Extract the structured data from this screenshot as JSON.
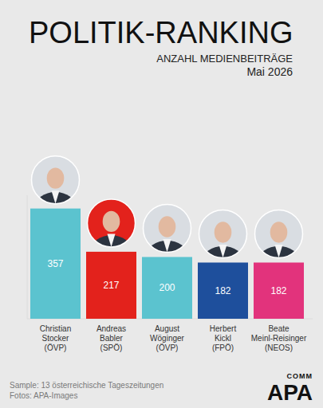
{
  "chart_data": {
    "type": "bar",
    "title": "POLITIK-RANKING",
    "subtitle": "ANZAHL MEDIENBEITRÄGE",
    "annotations": [
      "Mai 2026",
      "Sample: 13 österreichische Tageszeitungen",
      "Fotos: APA-Images",
      "APA",
      "COMM"
    ],
    "categories": [
      "Christian Stocker (ÖVP)",
      "Andreas Babler (SPÖ)",
      "August Wöginger (ÖVP)",
      "Herbert Kickl (FPÖ)",
      "Beate Meinl-Reisinger (NEOS)"
    ],
    "values": [
      357,
      217,
      200,
      182,
      182
    ],
    "colors": [
      "#5bc3cf",
      "#e3221c",
      "#5bc3cf",
      "#1e4f9c",
      "#e2337c"
    ],
    "ylim": [
      0,
      400
    ],
    "yticks": [
      0
    ],
    "grid": false,
    "data_labels": true,
    "tick_labels": false
  }
}
